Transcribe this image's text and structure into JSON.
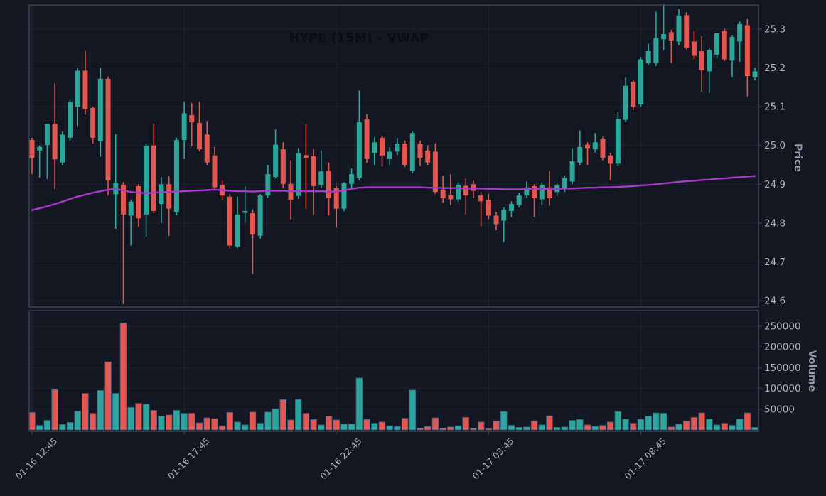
{
  "title": "HYPE (15M) - VWAP",
  "price_axis": {
    "label": "Price",
    "ticks": [
      25.3,
      25.2,
      25.1,
      25.0,
      24.9,
      24.8,
      24.7,
      24.6
    ],
    "tick_labels": [
      "25.3",
      "25.2",
      "25.1",
      "25.0",
      "24.9",
      "24.8",
      "24.7",
      "24.6"
    ]
  },
  "volume_axis": {
    "label": "Volume",
    "ticks": [
      250000,
      200000,
      150000,
      100000,
      50000
    ],
    "tick_labels": [
      "250000",
      "200000",
      "150000",
      "100000",
      "50000"
    ]
  },
  "time_axis": {
    "tick_indices": [
      0,
      20,
      40,
      60,
      80
    ],
    "tick_labels": [
      "01-16 12:45",
      "01-16 17:45",
      "01-16 22:45",
      "01-17 03:45",
      "01-17 08:45"
    ]
  },
  "colors": {
    "background": "#131722",
    "up": "#2aa79a",
    "down": "#e4564f",
    "vwap": "#a83acb",
    "grid": "#1e2430",
    "spine": "#3c4350",
    "tick_label": "#b0b5bf",
    "axis_label": "#99a0ac",
    "title": "#0a0c11",
    "volume_bar_edge": "#38668f"
  },
  "chart_data": {
    "type": "candlestick",
    "title": "HYPE (15M) - VWAP",
    "interval": "15M",
    "overlay": "VWAP",
    "price_ylim": [
      24.584,
      25.362
    ],
    "volume_ylim": [
      0,
      287000
    ],
    "grid": true,
    "candles_ohlc": [
      [
        25.014,
        25.02,
        24.926,
        24.968
      ],
      [
        24.987,
        25.0,
        24.917,
        24.996
      ],
      [
        25.001,
        25.056,
        24.913,
        25.056
      ],
      [
        25.056,
        25.161,
        24.886,
        24.964
      ],
      [
        24.956,
        25.036,
        24.95,
        25.028
      ],
      [
        25.02,
        25.118,
        25.012,
        25.111
      ],
      [
        25.1,
        25.2,
        25.048,
        25.193
      ],
      [
        25.193,
        25.244,
        25.08,
        25.094
      ],
      [
        25.097,
        25.1,
        25.005,
        25.02
      ],
      [
        25.011,
        25.201,
        24.971,
        25.172
      ],
      [
        25.172,
        25.178,
        24.871,
        24.91
      ],
      [
        24.874,
        25.029,
        24.785,
        24.903
      ],
      [
        24.898,
        24.905,
        24.591,
        24.822
      ],
      [
        24.819,
        24.86,
        24.742,
        24.855
      ],
      [
        24.895,
        24.9,
        24.79,
        24.812
      ],
      [
        24.822,
        25.005,
        24.764,
        24.999
      ],
      [
        25.0,
        25.056,
        24.826,
        24.831
      ],
      [
        24.849,
        24.919,
        24.8,
        24.9
      ],
      [
        24.9,
        24.92,
        24.767,
        24.837
      ],
      [
        24.828,
        25.02,
        24.82,
        25.014
      ],
      [
        25.014,
        25.112,
        24.965,
        25.083
      ],
      [
        25.078,
        25.109,
        24.999,
        25.06
      ],
      [
        25.058,
        25.113,
        24.985,
        24.99
      ],
      [
        25.028,
        25.063,
        24.95,
        24.956
      ],
      [
        24.974,
        24.996,
        24.885,
        24.892
      ],
      [
        24.898,
        24.91,
        24.858,
        24.871
      ],
      [
        24.868,
        24.875,
        24.733,
        24.742
      ],
      [
        24.739,
        24.868,
        24.735,
        24.822
      ],
      [
        24.826,
        24.895,
        24.803,
        24.831
      ],
      [
        24.825,
        24.835,
        24.669,
        24.77
      ],
      [
        24.767,
        24.875,
        24.76,
        24.871
      ],
      [
        24.871,
        24.95,
        24.865,
        24.926
      ],
      [
        24.919,
        25.042,
        24.915,
        25.002
      ],
      [
        24.99,
        25.008,
        24.89,
        24.901
      ],
      [
        24.901,
        24.962,
        24.809,
        24.86
      ],
      [
        24.87,
        24.993,
        24.862,
        24.979
      ],
      [
        24.975,
        25.054,
        24.837,
        24.968
      ],
      [
        24.972,
        24.99,
        24.822,
        24.895
      ],
      [
        24.898,
        24.987,
        24.89,
        24.933
      ],
      [
        24.935,
        24.956,
        24.82,
        24.864
      ],
      [
        24.89,
        24.895,
        24.788,
        24.837
      ],
      [
        24.837,
        24.905,
        24.83,
        24.902
      ],
      [
        24.901,
        24.94,
        24.89,
        24.926
      ],
      [
        24.916,
        25.142,
        24.91,
        25.06
      ],
      [
        25.067,
        25.08,
        24.955,
        24.965
      ],
      [
        24.981,
        25.02,
        24.95,
        25.008
      ],
      [
        25.02,
        25.025,
        24.947,
        24.974
      ],
      [
        24.965,
        24.995,
        24.95,
        24.984
      ],
      [
        24.984,
        25.02,
        24.975,
        25.005
      ],
      [
        25.005,
        25.012,
        24.945,
        24.95
      ],
      [
        24.935,
        25.036,
        24.928,
        25.032
      ],
      [
        25.004,
        25.012,
        24.947,
        24.968
      ],
      [
        24.987,
        25.0,
        24.95,
        24.956
      ],
      [
        24.984,
        25.005,
        24.875,
        24.88
      ],
      [
        24.886,
        24.922,
        24.852,
        24.864
      ],
      [
        24.872,
        24.926,
        24.846,
        24.861
      ],
      [
        24.861,
        24.905,
        24.855,
        24.898
      ],
      [
        24.896,
        24.915,
        24.822,
        24.871
      ],
      [
        24.9,
        24.91,
        24.864,
        24.883
      ],
      [
        24.871,
        24.88,
        24.791,
        24.856
      ],
      [
        24.86,
        24.875,
        24.81,
        24.819
      ],
      [
        24.819,
        24.828,
        24.782,
        24.797
      ],
      [
        24.806,
        24.84,
        24.751,
        24.834
      ],
      [
        24.831,
        24.856,
        24.815,
        24.849
      ],
      [
        24.846,
        24.877,
        24.84,
        24.871
      ],
      [
        24.871,
        24.907,
        24.865,
        24.892
      ],
      [
        24.895,
        24.9,
        24.816,
        24.864
      ],
      [
        24.861,
        24.905,
        24.846,
        24.898
      ],
      [
        24.892,
        24.935,
        24.845,
        24.864
      ],
      [
        24.88,
        24.902,
        24.87,
        24.898
      ],
      [
        24.888,
        24.922,
        24.88,
        24.916
      ],
      [
        24.907,
        24.993,
        24.9,
        24.959
      ],
      [
        24.956,
        25.039,
        24.95,
        24.996
      ],
      [
        25.002,
        25.008,
        24.95,
        24.993
      ],
      [
        24.99,
        25.032,
        24.982,
        25.008
      ],
      [
        25.017,
        25.022,
        24.962,
        24.968
      ],
      [
        24.974,
        24.98,
        24.91,
        24.953
      ],
      [
        24.953,
        25.087,
        24.948,
        25.069
      ],
      [
        25.066,
        25.176,
        25.06,
        25.154
      ],
      [
        25.164,
        25.17,
        25.091,
        25.1
      ],
      [
        25.106,
        25.228,
        25.1,
        25.222
      ],
      [
        25.213,
        25.262,
        25.208,
        25.243
      ],
      [
        25.213,
        25.345,
        25.205,
        25.277
      ],
      [
        25.274,
        25.365,
        25.246,
        25.287
      ],
      [
        25.292,
        25.298,
        25.213,
        25.271
      ],
      [
        25.268,
        25.352,
        25.258,
        25.335
      ],
      [
        25.336,
        25.344,
        25.248,
        25.252
      ],
      [
        25.268,
        25.295,
        25.222,
        25.231
      ],
      [
        25.243,
        25.283,
        25.139,
        25.194
      ],
      [
        25.191,
        25.25,
        25.136,
        25.246
      ],
      [
        25.234,
        25.29,
        25.225,
        25.289
      ],
      [
        25.295,
        25.301,
        25.218,
        25.222
      ],
      [
        25.219,
        25.285,
        25.176,
        25.28
      ],
      [
        25.268,
        25.32,
        25.216,
        25.313
      ],
      [
        25.31,
        25.326,
        25.127,
        25.179
      ],
      [
        25.176,
        25.2,
        25.168,
        25.191
      ]
    ],
    "volume": [
      42000,
      11000,
      23000,
      97000,
      13000,
      18000,
      45000,
      88000,
      40000,
      95000,
      164000,
      88000,
      258000,
      54000,
      64000,
      62000,
      47000,
      33000,
      36000,
      47000,
      40000,
      40000,
      17000,
      29000,
      27000,
      10000,
      42000,
      19000,
      12000,
      43000,
      16000,
      43000,
      51000,
      73000,
      24000,
      73000,
      40000,
      25000,
      12000,
      33000,
      24000,
      14000,
      14000,
      125000,
      25000,
      16000,
      19000,
      10000,
      8000,
      28000,
      96000,
      4000,
      8000,
      29000,
      4000,
      7000,
      10000,
      30000,
      4000,
      19000,
      3000,
      22000,
      44000,
      11000,
      6000,
      7000,
      22000,
      12000,
      34000,
      6000,
      7000,
      23000,
      25000,
      12000,
      8000,
      11000,
      19000,
      44000,
      26000,
      16000,
      25000,
      33000,
      41000,
      40000,
      7000,
      14000,
      22000,
      30000,
      41000,
      26000,
      12000,
      16000,
      11000,
      26000,
      41000,
      6000
    ],
    "vwap": [
      24.833,
      24.838,
      24.843,
      24.849,
      24.855,
      24.862,
      24.868,
      24.873,
      24.878,
      24.882,
      24.886,
      24.888,
      24.884,
      24.88,
      24.878,
      24.877,
      24.878,
      24.879,
      24.88,
      24.881,
      24.882,
      24.883,
      24.884,
      24.885,
      24.886,
      24.885,
      24.883,
      24.882,
      24.882,
      24.881,
      24.882,
      24.883,
      24.883,
      24.883,
      24.882,
      24.882,
      24.882,
      24.882,
      24.882,
      24.881,
      24.881,
      24.884,
      24.888,
      24.891,
      24.892,
      24.892,
      24.892,
      24.892,
      24.892,
      24.892,
      24.892,
      24.892,
      24.891,
      24.891,
      24.89,
      24.89,
      24.89,
      24.889,
      24.889,
      24.889,
      24.888,
      24.888,
      24.887,
      24.887,
      24.887,
      24.888,
      24.888,
      24.888,
      24.888,
      24.888,
      24.889,
      24.889,
      24.89,
      24.891,
      24.891,
      24.892,
      24.892,
      24.893,
      24.894,
      24.895,
      24.897,
      24.898,
      24.9,
      24.902,
      24.904,
      24.906,
      24.908,
      24.909,
      24.911,
      24.912,
      24.914,
      24.915,
      24.917,
      24.918,
      24.92,
      24.921
    ]
  }
}
